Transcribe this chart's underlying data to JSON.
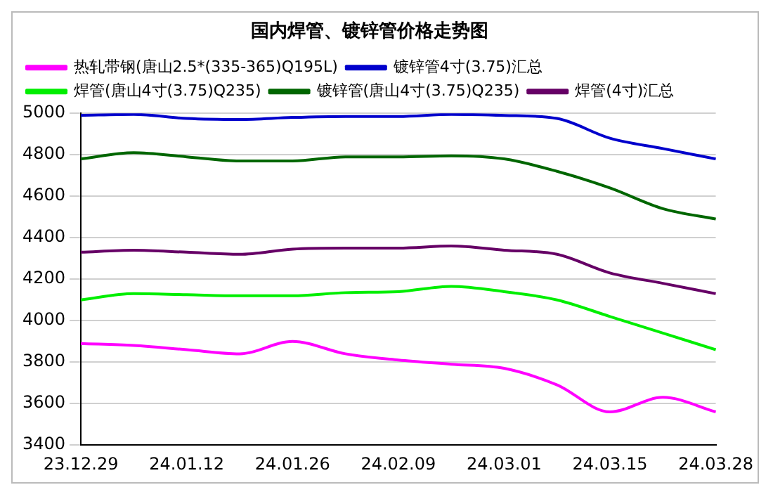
{
  "chart_data": {
    "type": "line",
    "title": "国内焊管、镀锌管价格走势图",
    "categories": [
      "23.12.29",
      null,
      "24.01.12",
      null,
      "24.01.26",
      null,
      "24.02.09",
      null,
      "24.03.01",
      null,
      "24.03.15",
      null,
      "24.03.28"
    ],
    "series": [
      {
        "name": "热轧带钢(唐山2.5*(335-365)Q195L)",
        "color": "#ff00ff",
        "values": [
          3890,
          3880,
          3860,
          3840,
          3900,
          3840,
          3810,
          3790,
          3770,
          3690,
          3560,
          3630,
          3560
        ]
      },
      {
        "name": "镀锌管4寸(3.75)汇总",
        "color": "#0000cc",
        "values": [
          4990,
          4995,
          4975,
          4970,
          4980,
          4985,
          4985,
          4995,
          4990,
          4975,
          4880,
          4830,
          4780
        ]
      },
      {
        "name": "焊管(唐山4寸(3.75)Q235)",
        "color": "#00ee00",
        "values": [
          4100,
          4130,
          4125,
          4120,
          4120,
          4135,
          4140,
          4165,
          4140,
          4100,
          4020,
          3940,
          3860
        ]
      },
      {
        "name": "镀锌管(唐山4寸(3.75)Q235)",
        "color": "#006600",
        "values": [
          4780,
          4810,
          4790,
          4770,
          4770,
          4790,
          4790,
          4795,
          4780,
          4720,
          4640,
          4540,
          4490
        ]
      },
      {
        "name": "焊管(4寸)汇总",
        "color": "#660066",
        "values": [
          4330,
          4340,
          4330,
          4320,
          4345,
          4350,
          4350,
          4360,
          4340,
          4320,
          4230,
          4180,
          4130
        ]
      }
    ],
    "ylim": [
      3400,
      5000
    ],
    "yticks": [
      3400,
      3600,
      3800,
      4000,
      4200,
      4400,
      4600,
      4800,
      5000
    ],
    "grid": "y",
    "legend": "top",
    "marker": "none",
    "line_style": "solid"
  }
}
